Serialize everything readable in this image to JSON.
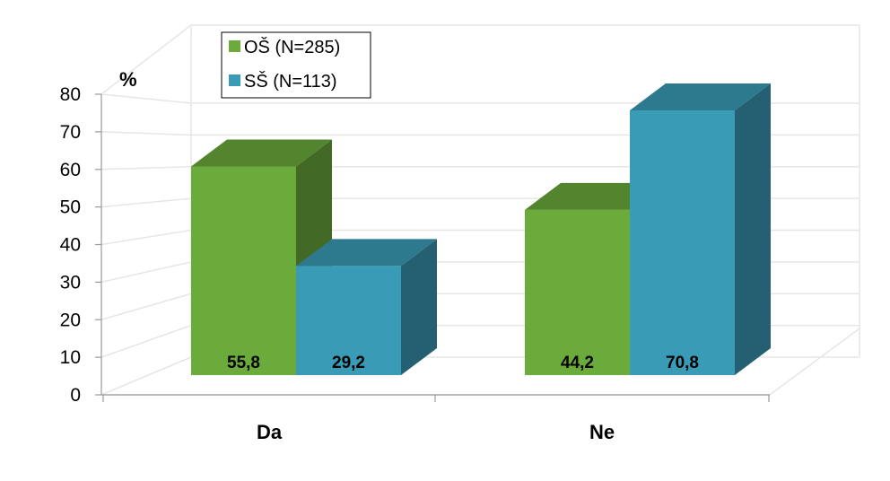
{
  "chart_data": {
    "type": "bar",
    "categories": [
      "Da",
      "Ne"
    ],
    "series": [
      {
        "name": "OŠ (N=285)",
        "values": [
          55.8,
          44.2
        ],
        "color": "#6aab3c",
        "labels": [
          "55,8",
          "44,2"
        ]
      },
      {
        "name": "SŠ (N=113)",
        "values": [
          29.2,
          70.8
        ],
        "color": "#3a9bb6",
        "labels": [
          "29,2",
          "70,8"
        ]
      }
    ],
    "ylim": [
      0,
      80
    ],
    "yticks": [
      0,
      10,
      20,
      30,
      40,
      50,
      60,
      70,
      80
    ],
    "ylabel": "%",
    "xlabel": "",
    "grid": true,
    "three_d": true,
    "legend_position": "top-left"
  }
}
